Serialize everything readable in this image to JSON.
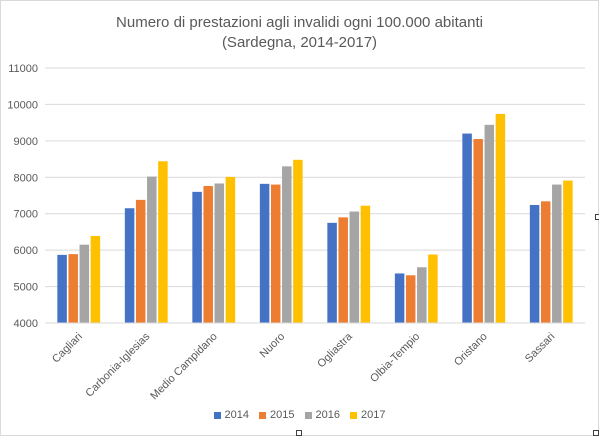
{
  "chart_data": {
    "type": "bar",
    "title": "Numero di prestazioni agli invalidi ogni 100.000 abitanti",
    "subtitle": "(Sardegna, 2014-2017)",
    "categories": [
      "Cagliari",
      "Carbonia-Iglesias",
      "Medio Campidano",
      "Nuoro",
      "Ogliastra",
      "Olbia-Tempio",
      "Oristano",
      "Sassari"
    ],
    "series": [
      {
        "name": "2014",
        "color": "#4472c4",
        "values": [
          5870,
          7150,
          7600,
          7820,
          6750,
          5360,
          9200,
          7240
        ]
      },
      {
        "name": "2015",
        "color": "#ed7d31",
        "values": [
          5890,
          7380,
          7760,
          7800,
          6900,
          5310,
          9050,
          7340
        ]
      },
      {
        "name": "2016",
        "color": "#a5a5a5",
        "values": [
          6150,
          8020,
          7830,
          8300,
          7060,
          5530,
          9440,
          7800
        ]
      },
      {
        "name": "2017",
        "color": "#ffc000",
        "values": [
          6390,
          8440,
          8010,
          8480,
          7220,
          5880,
          9740,
          7910
        ]
      }
    ],
    "yticks": [
      "4000",
      "5000",
      "6000",
      "7000",
      "8000",
      "9000",
      "10000",
      "11000"
    ],
    "ylim": [
      4000,
      11000
    ],
    "grid": true,
    "legend_position": "bottom"
  }
}
